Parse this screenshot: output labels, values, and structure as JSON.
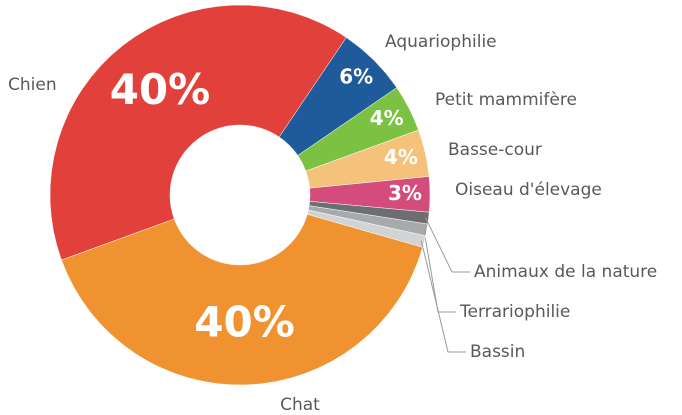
{
  "chart_data": {
    "type": "donut",
    "categories": [
      "Aquariophilie",
      "Petit mammifère",
      "Basse-cour",
      "Oiseau d'élevage",
      "Animaux de la nature",
      "Terrariophilie",
      "Bassin",
      "Chat",
      "Chien"
    ],
    "values": [
      6,
      4,
      4,
      3,
      1,
      1,
      1,
      40,
      40
    ],
    "value_labels": [
      "6%",
      "4%",
      "4%",
      "3%",
      null,
      null,
      null,
      "40%",
      "40%"
    ],
    "colors": [
      "#1f5a9a",
      "#7cc242",
      "#f4c27a",
      "#d34c7c",
      "#6d6e70",
      "#a7a9ab",
      "#d1d3d4",
      "#f0922f",
      "#e2403a"
    ]
  }
}
